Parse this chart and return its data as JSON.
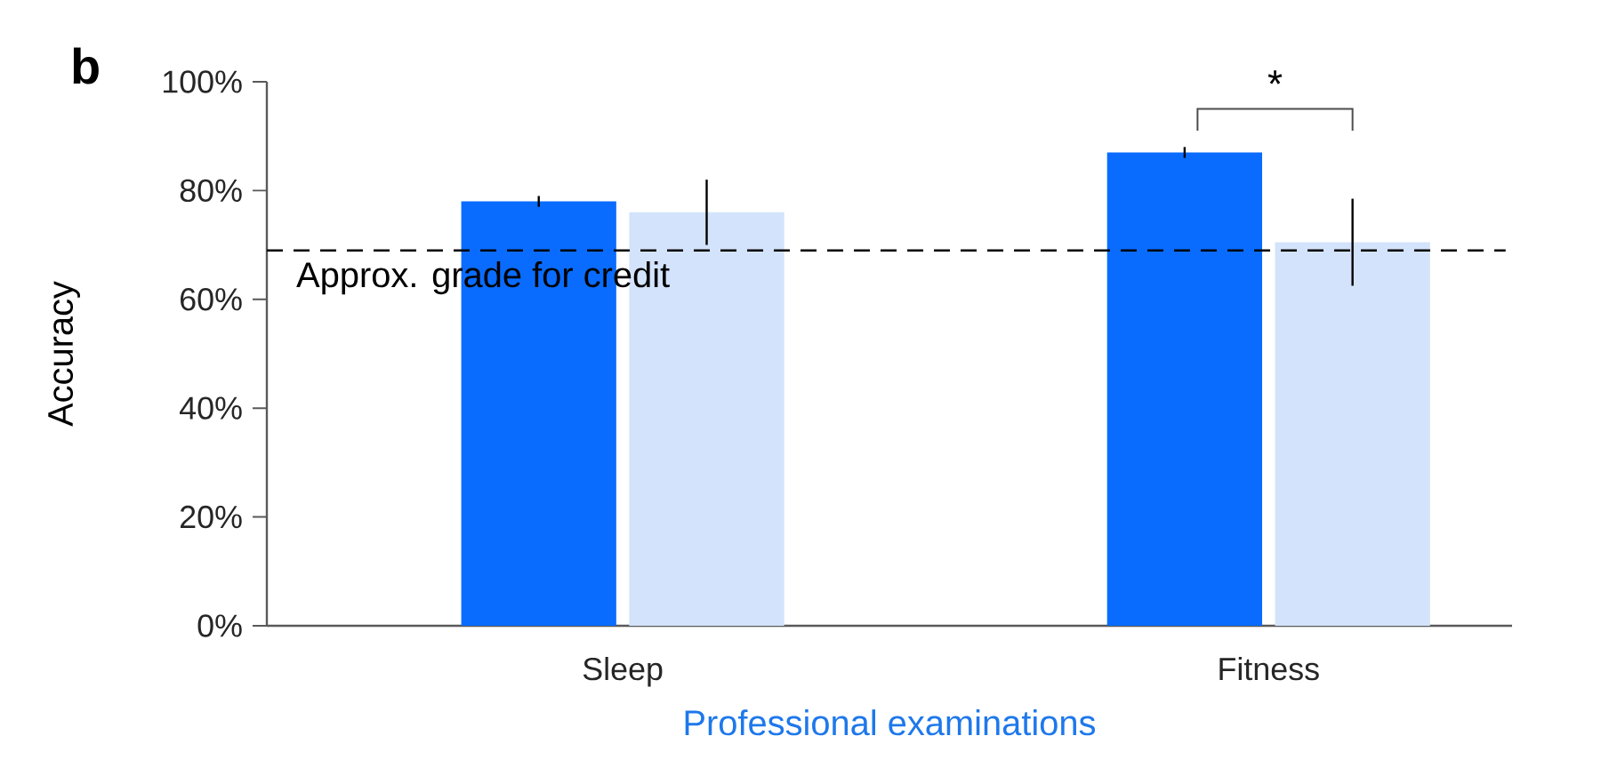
{
  "chart_data": {
    "type": "bar",
    "title": "b",
    "xlabel": "Professional examinations",
    "ylabel": "Accuracy",
    "categories": [
      "Sleep",
      "Fitness"
    ],
    "series": [
      {
        "color": "#0a6cff",
        "values": [
          78,
          87
        ],
        "errors": [
          1,
          1
        ]
      },
      {
        "color": "#d3e3fb",
        "values": [
          76,
          70.5
        ],
        "errors": [
          6,
          8
        ]
      }
    ],
    "ylim": [
      0,
      100
    ],
    "yticks": [
      {
        "value": 0,
        "label": "0%"
      },
      {
        "value": 20,
        "label": "20%"
      },
      {
        "value": 40,
        "label": "40%"
      },
      {
        "value": 60,
        "label": "60%"
      },
      {
        "value": 80,
        "label": "80%"
      },
      {
        "value": 100,
        "label": "100%"
      }
    ],
    "ref_lines": [
      {
        "axis": "y",
        "value": 69,
        "label": "Approx. grade for credit",
        "line_style": "dashed",
        "color": "#000000"
      }
    ],
    "annotations": [
      "*"
    ]
  }
}
